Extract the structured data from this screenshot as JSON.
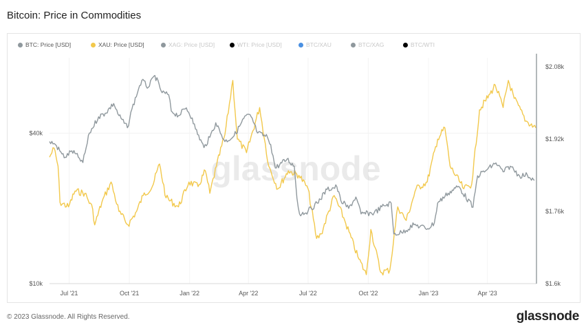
{
  "title": "Bitcoin: Price in Commodities",
  "footer": "© 2023 Glassnode. All Rights Reserved.",
  "brand": "glassnode",
  "watermark": "glassnode",
  "legend": [
    {
      "label": "BTC: Price [USD]",
      "color": "#8f989d",
      "active": true
    },
    {
      "label": "XAU: Price [USD]",
      "color": "#f2c84b",
      "active": true
    },
    {
      "label": "XAG: Price [USD]",
      "color": "#8f989d",
      "active": false
    },
    {
      "label": "WTI: Price [USD]",
      "color": "#000000",
      "active": false
    },
    {
      "label": "BTC/XAU",
      "color": "#4a90e2",
      "active": false
    },
    {
      "label": "BTC/XAG",
      "color": "#8f989d",
      "active": false
    },
    {
      "label": "BTC/WTI",
      "color": "#000000",
      "active": false
    }
  ],
  "chart_data": {
    "type": "line",
    "x_ticks": [
      "Jul '21",
      "Oct '21",
      "Jan '22",
      "Apr '22",
      "Jul '22",
      "Oct '22",
      "Jan '23",
      "Apr '23"
    ],
    "y_left_ticks": [
      "$10k",
      "$40k"
    ],
    "y_right_ticks": [
      "$1.6k",
      "$1.76k",
      "$1.92k",
      "$2.08k"
    ],
    "y_left_scale": "log",
    "y_left_range": [
      10000,
      80000
    ],
    "y_right_range": [
      1600,
      2100
    ],
    "x_range": [
      "2021-06-01",
      "2023-06-15"
    ],
    "series": [
      {
        "name": "BTC: Price [USD]",
        "axis": "left",
        "color": "#8f989d",
        "points": [
          [
            "2021-06-01",
            37000
          ],
          [
            "2021-06-10",
            36000
          ],
          [
            "2021-06-20",
            33000
          ],
          [
            "2021-06-25",
            32000
          ],
          [
            "2021-07-05",
            34000
          ],
          [
            "2021-07-15",
            32000
          ],
          [
            "2021-07-22",
            30500
          ],
          [
            "2021-08-01",
            40000
          ],
          [
            "2021-08-15",
            46500
          ],
          [
            "2021-08-25",
            48000
          ],
          [
            "2021-09-07",
            52500
          ],
          [
            "2021-09-15",
            47000
          ],
          [
            "2021-09-28",
            42000
          ],
          [
            "2021-10-05",
            50000
          ],
          [
            "2021-10-15",
            60000
          ],
          [
            "2021-10-20",
            65000
          ],
          [
            "2021-10-30",
            61000
          ],
          [
            "2021-11-09",
            68000
          ],
          [
            "2021-11-20",
            58000
          ],
          [
            "2021-11-30",
            57000
          ],
          [
            "2021-12-04",
            49000
          ],
          [
            "2021-12-15",
            47000
          ],
          [
            "2021-12-27",
            50500
          ],
          [
            "2022-01-05",
            46000
          ],
          [
            "2022-01-10",
            41500
          ],
          [
            "2022-01-23",
            35000
          ],
          [
            "2022-02-01",
            38500
          ],
          [
            "2022-02-10",
            44000
          ],
          [
            "2022-02-24",
            37000
          ],
          [
            "2022-03-10",
            39000
          ],
          [
            "2022-03-28",
            47000
          ],
          [
            "2022-04-05",
            46500
          ],
          [
            "2022-04-15",
            40000
          ],
          [
            "2022-04-30",
            38500
          ],
          [
            "2022-05-05",
            36000
          ],
          [
            "2022-05-12",
            29000
          ],
          [
            "2022-05-30",
            31500
          ],
          [
            "2022-06-10",
            29500
          ],
          [
            "2022-06-14",
            22000
          ],
          [
            "2022-06-18",
            19000
          ],
          [
            "2022-07-01",
            19500
          ],
          [
            "2022-07-15",
            21000
          ],
          [
            "2022-07-30",
            23800
          ],
          [
            "2022-08-14",
            24400
          ],
          [
            "2022-08-20",
            21500
          ],
          [
            "2022-09-01",
            20000
          ],
          [
            "2022-09-12",
            22200
          ],
          [
            "2022-09-20",
            19000
          ],
          [
            "2022-10-10",
            19200
          ],
          [
            "2022-10-25",
            20500
          ],
          [
            "2022-11-05",
            21000
          ],
          [
            "2022-11-09",
            15800
          ],
          [
            "2022-11-21",
            16000
          ],
          [
            "2022-12-10",
            17200
          ],
          [
            "2022-12-31",
            16600
          ],
          [
            "2023-01-10",
            17500
          ],
          [
            "2023-01-15",
            21000
          ],
          [
            "2023-01-31",
            23000
          ],
          [
            "2023-02-16",
            24500
          ],
          [
            "2023-03-10",
            20200
          ],
          [
            "2023-03-17",
            27000
          ],
          [
            "2023-03-31",
            28500
          ],
          [
            "2023-04-14",
            30400
          ],
          [
            "2023-04-25",
            28000
          ],
          [
            "2023-05-06",
            29500
          ],
          [
            "2023-05-20",
            27000
          ],
          [
            "2023-06-01",
            27200
          ],
          [
            "2023-06-12",
            25900
          ]
        ]
      },
      {
        "name": "XAU: Price [USD]",
        "axis": "right",
        "color": "#f2c84b",
        "points": [
          [
            "2021-06-01",
            1880
          ],
          [
            "2021-06-08",
            1900
          ],
          [
            "2021-06-14",
            1860
          ],
          [
            "2021-06-17",
            1780
          ],
          [
            "2021-06-30",
            1770
          ],
          [
            "2021-07-10",
            1805
          ],
          [
            "2021-07-25",
            1800
          ],
          [
            "2021-08-06",
            1765
          ],
          [
            "2021-08-09",
            1730
          ],
          [
            "2021-08-20",
            1780
          ],
          [
            "2021-09-03",
            1825
          ],
          [
            "2021-09-15",
            1760
          ],
          [
            "2021-09-29",
            1730
          ],
          [
            "2021-10-12",
            1760
          ],
          [
            "2021-10-22",
            1795
          ],
          [
            "2021-11-05",
            1815
          ],
          [
            "2021-11-16",
            1865
          ],
          [
            "2021-11-26",
            1790
          ],
          [
            "2021-12-15",
            1770
          ],
          [
            "2021-12-31",
            1825
          ],
          [
            "2022-01-14",
            1815
          ],
          [
            "2022-01-25",
            1850
          ],
          [
            "2022-02-01",
            1800
          ],
          [
            "2022-02-11",
            1860
          ],
          [
            "2022-02-24",
            1930
          ],
          [
            "2022-03-08",
            2050
          ],
          [
            "2022-03-15",
            1920
          ],
          [
            "2022-03-29",
            1890
          ],
          [
            "2022-04-18",
            1990
          ],
          [
            "2022-05-02",
            1860
          ],
          [
            "2022-05-16",
            1810
          ],
          [
            "2022-06-01",
            1850
          ],
          [
            "2022-06-17",
            1840
          ],
          [
            "2022-07-01",
            1810
          ],
          [
            "2022-07-14",
            1700
          ],
          [
            "2022-07-21",
            1710
          ],
          [
            "2022-08-10",
            1795
          ],
          [
            "2022-08-26",
            1740
          ],
          [
            "2022-09-15",
            1660
          ],
          [
            "2022-09-28",
            1620
          ],
          [
            "2022-10-05",
            1720
          ],
          [
            "2022-10-20",
            1625
          ],
          [
            "2022-11-03",
            1630
          ],
          [
            "2022-11-15",
            1770
          ],
          [
            "2022-11-28",
            1740
          ],
          [
            "2022-12-13",
            1810
          ],
          [
            "2022-12-30",
            1825
          ],
          [
            "2023-01-15",
            1920
          ],
          [
            "2023-01-26",
            1945
          ],
          [
            "2023-02-03",
            1860
          ],
          [
            "2023-02-24",
            1810
          ],
          [
            "2023-03-08",
            1820
          ],
          [
            "2023-03-20",
            1985
          ],
          [
            "2023-04-05",
            2020
          ],
          [
            "2023-04-13",
            2040
          ],
          [
            "2023-04-25",
            1990
          ],
          [
            "2023-05-03",
            2050
          ],
          [
            "2023-05-12",
            2010
          ],
          [
            "2023-05-30",
            1960
          ],
          [
            "2023-06-14",
            1945
          ]
        ]
      }
    ]
  }
}
